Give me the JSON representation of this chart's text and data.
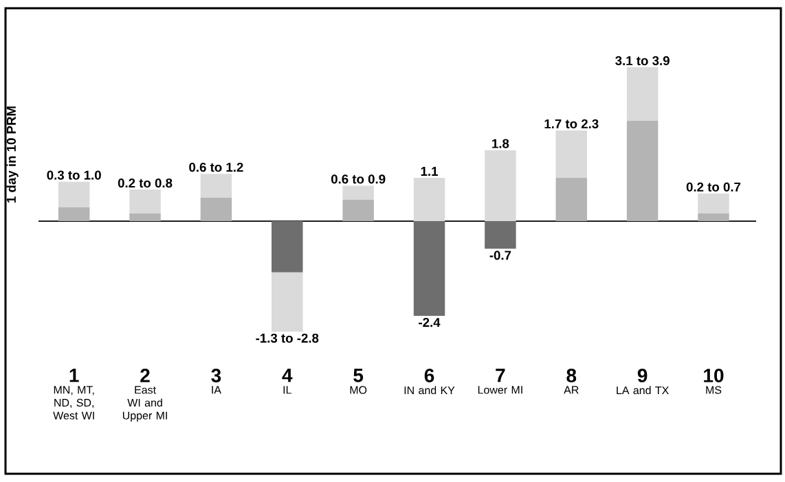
{
  "chart_data": {
    "type": "bar",
    "stacked": true,
    "ylabel": "1 day in 10 PRM",
    "categories": [
      "1",
      "2",
      "3",
      "4",
      "5",
      "6",
      "7",
      "8",
      "9",
      "10"
    ],
    "series": [
      {
        "color": "#b4b4b4",
        "values": [
          0.35,
          0.2,
          0.6,
          null,
          0.55,
          null,
          null,
          1.1,
          2.55,
          0.2
        ]
      },
      {
        "color": "#6e6e6e",
        "values": [
          null,
          null,
          null,
          -1.3,
          null,
          -2.4,
          -0.7,
          null,
          null,
          null
        ],
        "value_labels": [
          null,
          null,
          null,
          null,
          null,
          "-2.4",
          "-0.7",
          null,
          null,
          null
        ]
      },
      {
        "color": "#dadada",
        "values": [
          0.65,
          0.6,
          0.6,
          -1.5,
          0.35,
          1.1,
          1.8,
          1.2,
          1.35,
          0.5
        ],
        "value_labels": [
          null,
          null,
          null,
          null,
          null,
          "1.1",
          "1.8",
          null,
          null,
          null
        ]
      }
    ],
    "totals": [
      "0.3 to 1.0",
      "0.2 to 0.8",
      "0.6 to 1.2",
      "-1.3 to -2.8",
      "0.6 to 0.9",
      null,
      null,
      "1.7 to 2.3",
      "3.1 to 3.9",
      "0.2 to 0.7"
    ],
    "annotations": [
      "MN, MT, ND, SD, West WI",
      "East WI and Upper MI",
      "IA",
      "IL",
      "MO",
      "IN and KY",
      "Lower MI",
      "AR",
      "LA and TX",
      "MS"
    ]
  }
}
